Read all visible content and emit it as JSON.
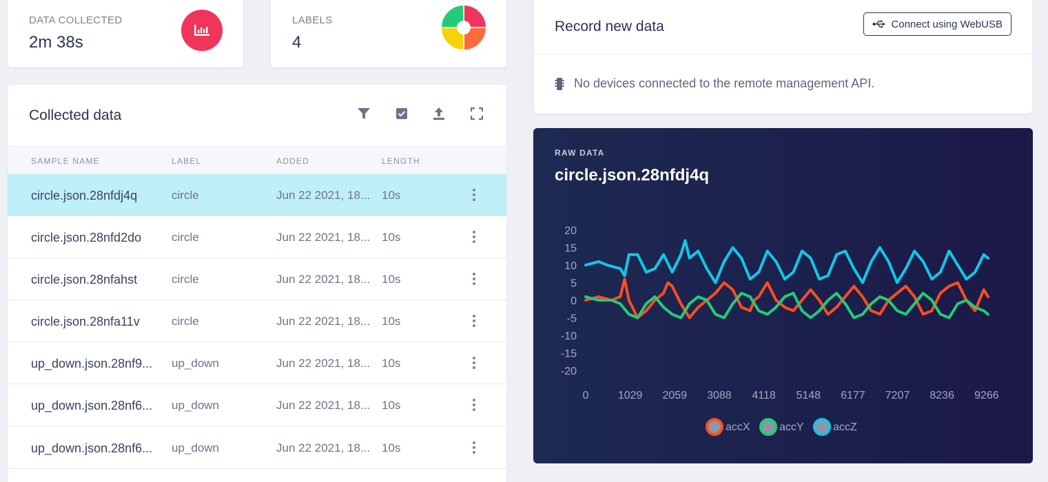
{
  "stats": {
    "data_collected_label": "DATA COLLECTED",
    "data_collected_value": "2m 38s",
    "labels_label": "LABELS",
    "labels_value": "4"
  },
  "collected": {
    "title": "Collected data",
    "columns": [
      "SAMPLE NAME",
      "LABEL",
      "ADDED",
      "LENGTH"
    ],
    "rows": [
      {
        "name": "circle.json.28nfdj4q",
        "label": "circle",
        "added": "Jun 22 2021, 18...",
        "length": "10s"
      },
      {
        "name": "circle.json.28nfd2do",
        "label": "circle",
        "added": "Jun 22 2021, 18...",
        "length": "10s"
      },
      {
        "name": "circle.json.28nfahst",
        "label": "circle",
        "added": "Jun 22 2021, 18...",
        "length": "10s"
      },
      {
        "name": "circle.json.28nfa11v",
        "label": "circle",
        "added": "Jun 22 2021, 18...",
        "length": "10s"
      },
      {
        "name": "up_down.json.28nf9...",
        "label": "up_down",
        "added": "Jun 22 2021, 18...",
        "length": "10s"
      },
      {
        "name": "up_down.json.28nf6...",
        "label": "up_down",
        "added": "Jun 22 2021, 18...",
        "length": "10s"
      },
      {
        "name": "up_down.json.28nf6...",
        "label": "up_down",
        "added": "Jun 22 2021, 18...",
        "length": "10s"
      }
    ]
  },
  "record": {
    "title": "Record new data",
    "webusb_label": "Connect using WebUSB",
    "message": "No devices connected to the remote management API."
  },
  "raw": {
    "kicker": "RAW DATA",
    "title": "circle.json.28nfdj4q"
  },
  "colors": {
    "accent_red": "#f0355c",
    "selected_row": "#bfeff9",
    "accX": "#ff4d1f",
    "accY": "#22cc77",
    "accZ": "#11c8e8"
  },
  "chart_data": {
    "type": "line",
    "title": "circle.json.28nfdj4q",
    "xlabel": "",
    "ylabel": "",
    "ylim": [
      -20,
      20
    ],
    "xlim": [
      0,
      9300
    ],
    "yticks": [
      20,
      15,
      10,
      5,
      0,
      -5,
      -10,
      -15,
      -20
    ],
    "xticks": [
      0,
      1029,
      2059,
      3088,
      4118,
      5148,
      6177,
      7207,
      8236,
      9266
    ],
    "legend": "bottom",
    "series": [
      {
        "name": "accX",
        "color": "#ff4d1f",
        "x": [
          0,
          300,
          600,
          800,
          900,
          1000,
          1200,
          1400,
          1600,
          1800,
          1900,
          2000,
          2200,
          2400,
          2600,
          2800,
          3000,
          3200,
          3400,
          3600,
          3800,
          3900,
          4000,
          4200,
          4400,
          4600,
          4800,
          5000,
          5200,
          5400,
          5600,
          5800,
          6000,
          6200,
          6400,
          6600,
          6800,
          7000,
          7200,
          7400,
          7600,
          7800,
          8000,
          8200,
          8400,
          8600,
          8800,
          9000,
          9200,
          9300
        ],
        "y": [
          0,
          1,
          0,
          1,
          6,
          0,
          -5,
          -3,
          0,
          2,
          5,
          4,
          -1,
          -5,
          -2,
          0,
          2,
          5,
          3,
          -2,
          -3,
          0,
          1,
          5,
          0,
          -2,
          -3,
          0,
          3,
          0,
          -4,
          -2,
          1,
          4,
          1,
          -3,
          -4,
          0,
          2,
          4,
          1,
          -4,
          -3,
          2,
          4,
          5,
          0,
          -3,
          3,
          1
        ]
      },
      {
        "name": "accY",
        "color": "#22cc77",
        "x": [
          0,
          300,
          600,
          800,
          1000,
          1200,
          1400,
          1600,
          1800,
          2000,
          2200,
          2400,
          2600,
          2800,
          3000,
          3200,
          3400,
          3600,
          3800,
          4000,
          4200,
          4400,
          4600,
          4800,
          5000,
          5200,
          5400,
          5600,
          5800,
          6000,
          6200,
          6400,
          6600,
          6800,
          7000,
          7200,
          7400,
          7600,
          7800,
          8000,
          8200,
          8400,
          8600,
          8800,
          9000,
          9200,
          9300
        ],
        "y": [
          1,
          0,
          0,
          -1,
          -4,
          -5,
          -1,
          1,
          -2,
          -4,
          -5,
          -1,
          1,
          0,
          -4,
          -5,
          -1,
          2,
          1,
          -3,
          -4,
          -2,
          1,
          2,
          -3,
          -5,
          -3,
          0,
          2,
          -1,
          -5,
          -4,
          -1,
          1,
          0,
          -3,
          -4,
          -1,
          2,
          0,
          -4,
          -5,
          -1,
          0,
          -2,
          -3,
          -4
        ]
      },
      {
        "name": "accZ",
        "color": "#11c8e8",
        "x": [
          0,
          300,
          500,
          800,
          900,
          1000,
          1200,
          1400,
          1600,
          1800,
          2000,
          2200,
          2300,
          2400,
          2600,
          2800,
          3000,
          3200,
          3400,
          3600,
          3800,
          4000,
          4200,
          4400,
          4600,
          4800,
          5000,
          5200,
          5400,
          5600,
          5800,
          6000,
          6200,
          6400,
          6600,
          6800,
          7000,
          7200,
          7400,
          7600,
          7800,
          8000,
          8200,
          8400,
          8600,
          8800,
          9000,
          9200,
          9300
        ],
        "y": [
          10,
          11,
          10,
          9,
          7,
          13,
          13,
          8,
          9,
          13,
          8,
          13,
          17,
          12,
          14,
          9,
          5,
          11,
          15,
          12,
          6,
          8,
          14,
          11,
          6,
          8,
          14,
          12,
          6,
          7,
          13,
          14,
          9,
          5,
          11,
          15,
          11,
          5,
          9,
          14,
          11,
          6,
          8,
          14,
          10,
          6,
          8,
          13,
          12
        ]
      }
    ]
  }
}
